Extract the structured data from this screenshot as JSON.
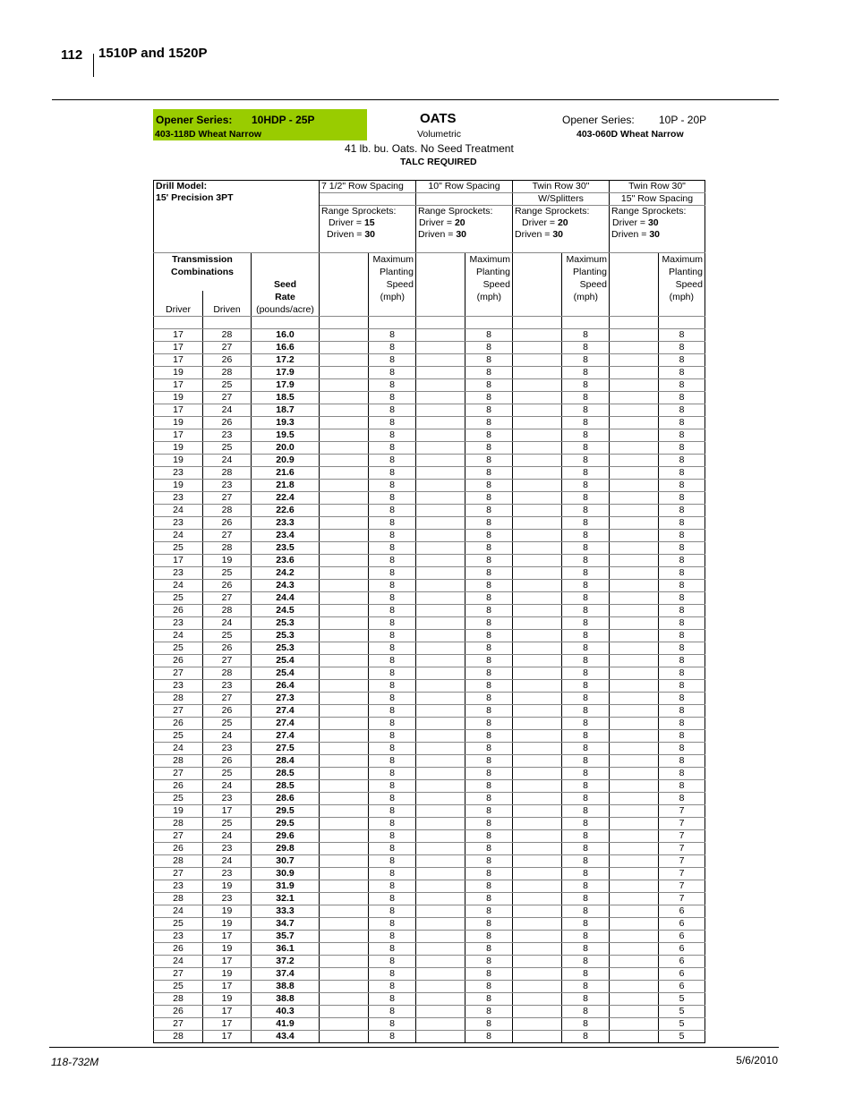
{
  "page_header": {
    "page_number": "112",
    "title": "1510P and 1520P"
  },
  "left_opener": {
    "label": "Opener Series:",
    "series": "10HDP - 25P",
    "part": "403-118D Wheat Narrow",
    "highlight_color": "#99cc00"
  },
  "right_opener": {
    "label": "Opener Series:",
    "series": "10P - 20P",
    "part": "403-060D Wheat Narrow"
  },
  "center": {
    "crop": "OATS",
    "metering": "Volumetric",
    "description": "41 lb. bu. Oats. No Seed Treatment",
    "note": "TALC REQUIRED"
  },
  "table": {
    "drill_model_label": "Drill Model:",
    "drill_model": "15' Precision 3PT",
    "configs": [
      {
        "spacing": "7 1/2\" Row Spacing",
        "sub": "",
        "sprockets": "Range Sprockets:",
        "driver_label": "Driver = ",
        "driver": "15",
        "driven_label": "Driven = ",
        "driven": "30"
      },
      {
        "spacing": "10\" Row Spacing",
        "sub": "",
        "sprockets": "Range Sprockets:",
        "driver_label": "Driver = ",
        "driver": "20",
        "driven_label": "Driven = ",
        "driven": "30"
      },
      {
        "spacing": "Twin Row 30\"",
        "sub": "W/Splitters",
        "sprockets": "Range Sprockets:",
        "driver_label": "Driver = ",
        "driver": "20",
        "driven_label": "Driven = ",
        "driven": "30"
      },
      {
        "spacing": "Twin Row 30\"",
        "sub": "15\" Row Spacing",
        "sprockets": "Range Sprockets:",
        "driver_label": "Driver = ",
        "driver": "30",
        "driven_label": "Driven = ",
        "driven": "30"
      }
    ],
    "headers": {
      "transmission": "Transmission",
      "combinations": "Combinations",
      "driver": "Driver",
      "driven": "Driven",
      "seed": "Seed",
      "rate": "Rate",
      "rate_unit": "(pounds/acre)",
      "speed_lines": [
        "Maximum",
        "Planting",
        "Speed",
        "(mph)"
      ]
    },
    "rows": [
      [
        17,
        28,
        "16.0",
        8,
        8,
        8,
        8
      ],
      [
        17,
        27,
        "16.6",
        8,
        8,
        8,
        8
      ],
      [
        17,
        26,
        "17.2",
        8,
        8,
        8,
        8
      ],
      [
        19,
        28,
        "17.9",
        8,
        8,
        8,
        8
      ],
      [
        17,
        25,
        "17.9",
        8,
        8,
        8,
        8
      ],
      [
        19,
        27,
        "18.5",
        8,
        8,
        8,
        8
      ],
      [
        17,
        24,
        "18.7",
        8,
        8,
        8,
        8
      ],
      [
        19,
        26,
        "19.3",
        8,
        8,
        8,
        8
      ],
      [
        17,
        23,
        "19.5",
        8,
        8,
        8,
        8
      ],
      [
        19,
        25,
        "20.0",
        8,
        8,
        8,
        8
      ],
      [
        19,
        24,
        "20.9",
        8,
        8,
        8,
        8
      ],
      [
        23,
        28,
        "21.6",
        8,
        8,
        8,
        8
      ],
      [
        19,
        23,
        "21.8",
        8,
        8,
        8,
        8
      ],
      [
        23,
        27,
        "22.4",
        8,
        8,
        8,
        8
      ],
      [
        24,
        28,
        "22.6",
        8,
        8,
        8,
        8
      ],
      [
        23,
        26,
        "23.3",
        8,
        8,
        8,
        8
      ],
      [
        24,
        27,
        "23.4",
        8,
        8,
        8,
        8
      ],
      [
        25,
        28,
        "23.5",
        8,
        8,
        8,
        8
      ],
      [
        17,
        19,
        "23.6",
        8,
        8,
        8,
        8
      ],
      [
        23,
        25,
        "24.2",
        8,
        8,
        8,
        8
      ],
      [
        24,
        26,
        "24.3",
        8,
        8,
        8,
        8
      ],
      [
        25,
        27,
        "24.4",
        8,
        8,
        8,
        8
      ],
      [
        26,
        28,
        "24.5",
        8,
        8,
        8,
        8
      ],
      [
        23,
        24,
        "25.3",
        8,
        8,
        8,
        8
      ],
      [
        24,
        25,
        "25.3",
        8,
        8,
        8,
        8
      ],
      [
        25,
        26,
        "25.3",
        8,
        8,
        8,
        8
      ],
      [
        26,
        27,
        "25.4",
        8,
        8,
        8,
        8
      ],
      [
        27,
        28,
        "25.4",
        8,
        8,
        8,
        8
      ],
      [
        23,
        23,
        "26.4",
        8,
        8,
        8,
        8
      ],
      [
        28,
        27,
        "27.3",
        8,
        8,
        8,
        8
      ],
      [
        27,
        26,
        "27.4",
        8,
        8,
        8,
        8
      ],
      [
        26,
        25,
        "27.4",
        8,
        8,
        8,
        8
      ],
      [
        25,
        24,
        "27.4",
        8,
        8,
        8,
        8
      ],
      [
        24,
        23,
        "27.5",
        8,
        8,
        8,
        8
      ],
      [
        28,
        26,
        "28.4",
        8,
        8,
        8,
        8
      ],
      [
        27,
        25,
        "28.5",
        8,
        8,
        8,
        8
      ],
      [
        26,
        24,
        "28.5",
        8,
        8,
        8,
        8
      ],
      [
        25,
        23,
        "28.6",
        8,
        8,
        8,
        8
      ],
      [
        19,
        17,
        "29.5",
        8,
        8,
        8,
        7
      ],
      [
        28,
        25,
        "29.5",
        8,
        8,
        8,
        7
      ],
      [
        27,
        24,
        "29.6",
        8,
        8,
        8,
        7
      ],
      [
        26,
        23,
        "29.8",
        8,
        8,
        8,
        7
      ],
      [
        28,
        24,
        "30.7",
        8,
        8,
        8,
        7
      ],
      [
        27,
        23,
        "30.9",
        8,
        8,
        8,
        7
      ],
      [
        23,
        19,
        "31.9",
        8,
        8,
        8,
        7
      ],
      [
        28,
        23,
        "32.1",
        8,
        8,
        8,
        7
      ],
      [
        24,
        19,
        "33.3",
        8,
        8,
        8,
        6
      ],
      [
        25,
        19,
        "34.7",
        8,
        8,
        8,
        6
      ],
      [
        23,
        17,
        "35.7",
        8,
        8,
        8,
        6
      ],
      [
        26,
        19,
        "36.1",
        8,
        8,
        8,
        6
      ],
      [
        24,
        17,
        "37.2",
        8,
        8,
        8,
        6
      ],
      [
        27,
        19,
        "37.4",
        8,
        8,
        8,
        6
      ],
      [
        25,
        17,
        "38.8",
        8,
        8,
        8,
        6
      ],
      [
        28,
        19,
        "38.8",
        8,
        8,
        8,
        5
      ],
      [
        26,
        17,
        "40.3",
        8,
        8,
        8,
        5
      ],
      [
        27,
        17,
        "41.9",
        8,
        8,
        8,
        5
      ],
      [
        28,
        17,
        "43.4",
        8,
        8,
        8,
        5
      ]
    ]
  },
  "footer": {
    "doc_number": "118-732M",
    "date": "5/6/2010"
  }
}
